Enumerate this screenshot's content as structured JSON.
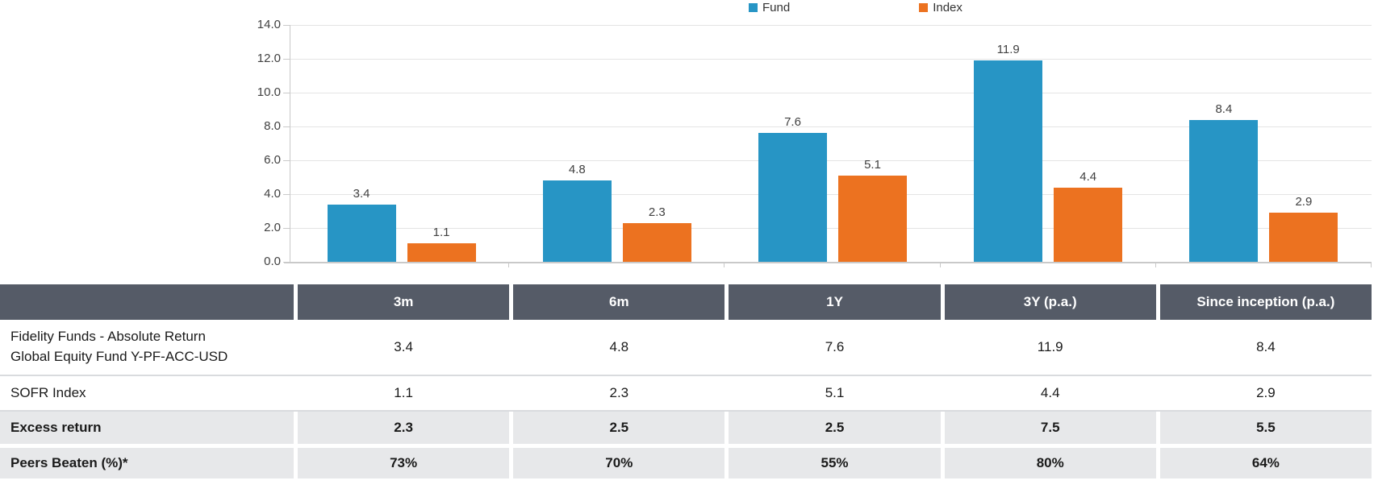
{
  "chart_data": {
    "type": "bar",
    "categories": [
      "3m",
      "6m",
      "1Y",
      "3Y (p.a.)",
      "Since inception (p.a.)"
    ],
    "series": [
      {
        "name": "Fund",
        "color": "#2795C5",
        "values": [
          3.4,
          4.8,
          7.6,
          11.9,
          8.4
        ]
      },
      {
        "name": "Index",
        "color": "#EC7220",
        "values": [
          1.1,
          2.3,
          5.1,
          4.4,
          2.9
        ]
      }
    ],
    "title": "",
    "xlabel": "",
    "ylabel": "",
    "ylim": [
      0,
      14
    ],
    "ytick_step": 2,
    "ytick_labels": [
      "0.0",
      "2.0",
      "4.0",
      "6.0",
      "8.0",
      "10.0",
      "12.0",
      "14.0"
    ],
    "grid": true,
    "legend_position": "top",
    "bar_value_labels": true
  },
  "table": {
    "columns": [
      "",
      "3m",
      "6m",
      "1Y",
      "3Y (p.a.)",
      "Since inception (p.a.)"
    ],
    "rows": [
      {
        "label": "Fidelity Funds - Absolute Return\nGlobal Equity Fund Y-PF-ACC-USD",
        "values": [
          "3.4",
          "4.8",
          "7.6",
          "11.9",
          "8.4"
        ],
        "style": "plain"
      },
      {
        "label": "SOFR Index",
        "values": [
          "1.1",
          "2.3",
          "5.1",
          "4.4",
          "2.9"
        ],
        "style": "plain"
      },
      {
        "label": "Excess return",
        "values": [
          "2.3",
          "2.5",
          "2.5",
          "7.5",
          "5.5"
        ],
        "style": "highlight"
      },
      {
        "label": "Peers Beaten (%)*",
        "values": [
          "73%",
          "70%",
          "55%",
          "80%",
          "64%"
        ],
        "style": "highlight"
      }
    ]
  },
  "colors": {
    "fund": "#2795C5",
    "index": "#EC7220",
    "header_bg": "#555B67",
    "highlight_bg": "#E7E8EA",
    "row_border": "#D9DBDE",
    "grid": "#E4E4E4",
    "axis": "#C9C9C9",
    "label_text": "#404040"
  }
}
